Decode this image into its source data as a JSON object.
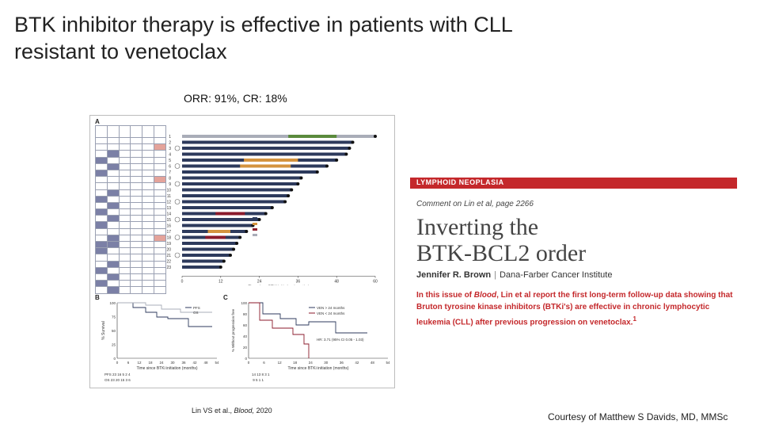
{
  "slide": {
    "title_line1": "BTK inhibitor therapy is effective in patients with CLL",
    "title_line2": "resistant to venetoclax",
    "orr": "ORR:  91%, CR:  18%",
    "citation_authors": "Lin VS et al., ",
    "citation_journal": "Blood,",
    "citation_year": " 2020",
    "courtesy": "Courtesy of Matthew S Davids, MD, MMSc"
  },
  "figure": {
    "panel_a": "A",
    "panel_b": "B",
    "panel_c": "C",
    "swimmer_xticks": [
      "0",
      "12",
      "24",
      "36",
      "48",
      "60"
    ],
    "swimmer_xlabel": "Time since BTKi initiation (months)",
    "patients": [
      "1",
      "2",
      "3",
      "4",
      "5",
      "6",
      "7",
      "8",
      "9",
      "10",
      "11",
      "12",
      "13",
      "14",
      "15",
      "16",
      "17",
      "18",
      "19",
      "20",
      "21",
      "22",
      "23"
    ],
    "km_b_xticks": [
      "0",
      "6",
      "12",
      "18",
      "24",
      "30",
      "36",
      "42",
      "48",
      "54"
    ],
    "km_b_xlabel": "Time since BTKi initiation (months)",
    "km_b_ylabel": "% Survival",
    "km_b_yticks": [
      "100",
      "75",
      "50",
      "25",
      "0"
    ],
    "km_b_legend": [
      "PFS",
      "OS"
    ],
    "km_b_risk": "PFS    23    16     5     2     4\nOS     23    20    15     3     6",
    "km_c_xticks": [
      "0",
      "6",
      "12",
      "18",
      "24",
      "30",
      "36",
      "42",
      "48",
      "54"
    ],
    "km_c_xlabel": "Time since BTKi initiation (months)",
    "km_c_ylabel": "% Without progression free",
    "km_c_yticks": [
      "100",
      "80",
      "60",
      "40",
      "20",
      "0"
    ],
    "km_c_legend": [
      "VEN > 24 months",
      "VEN < 24 months"
    ],
    "km_c_hr": "HR: 3.71 (95% CI 0.05 - 1.03)",
    "km_c_risk": "14     13     8      3     1\n 9      5     1      1"
  },
  "article": {
    "section": "LYMPHOID NEOPLASIA",
    "comment": "Comment on Lin et al, page 2266",
    "headline_line1": "Inverting the",
    "headline_line2": "BTK-BCL2 order",
    "author_name": "Jennifer R. Brown",
    "author_sep": "|",
    "author_inst": "Dana-Farber Cancer Institute",
    "abstract_pre": "In this issue of ",
    "abstract_journal": "Blood",
    "abstract_post": ", Lin et al report the first long-term follow-up data showing that Bruton tyrosine kinase inhibitors (BTKi's) are effective in chronic lymphocytic leukemia (CLL) after previous progression on venetoclax.",
    "abstract_ref": "1"
  },
  "colors": {
    "article_red": "#c4282b",
    "bar_navy": "#2d3a5c",
    "bar_gray": "#a9adb8",
    "bar_orange": "#d4933e",
    "bar_maroon": "#8b1a2b",
    "bar_green": "#5a8a3c"
  }
}
